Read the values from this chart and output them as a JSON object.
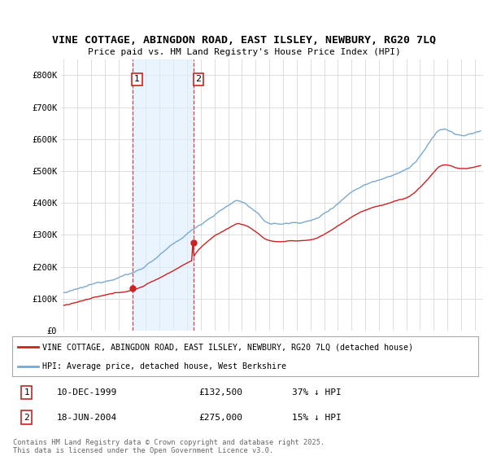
{
  "title1": "VINE COTTAGE, ABINGDON ROAD, EAST ILSLEY, NEWBURY, RG20 7LQ",
  "title2": "Price paid vs. HM Land Registry's House Price Index (HPI)",
  "red_label": "VINE COTTAGE, ABINGDON ROAD, EAST ILSLEY, NEWBURY, RG20 7LQ (detached house)",
  "blue_label": "HPI: Average price, detached house, West Berkshire",
  "footer": "Contains HM Land Registry data © Crown copyright and database right 2025.\nThis data is licensed under the Open Government Licence v3.0.",
  "sale1_date": "10-DEC-1999",
  "sale1_price": "£132,500",
  "sale1_hpi": "37% ↓ HPI",
  "sale1_x": 2000.0,
  "sale1_y": 132500,
  "sale2_date": "18-JUN-2004",
  "sale2_price": "£275,000",
  "sale2_hpi": "15% ↓ HPI",
  "sale2_x": 2004.46,
  "sale2_y": 275000,
  "vline1_x": 2000.0,
  "vline2_x": 2004.46,
  "bg_color": "#ffffff",
  "plot_bg": "#ffffff",
  "grid_color": "#dddddd",
  "red_color": "#cc2222",
  "blue_color": "#7aaad0",
  "vline_color": "#cc4444",
  "vline_fill": "#ddeeff",
  "ylim": [
    0,
    850000
  ],
  "yticks": [
    0,
    100000,
    200000,
    300000,
    400000,
    500000,
    600000,
    700000,
    800000
  ],
  "xmin": 1994.8,
  "xmax": 2025.6
}
